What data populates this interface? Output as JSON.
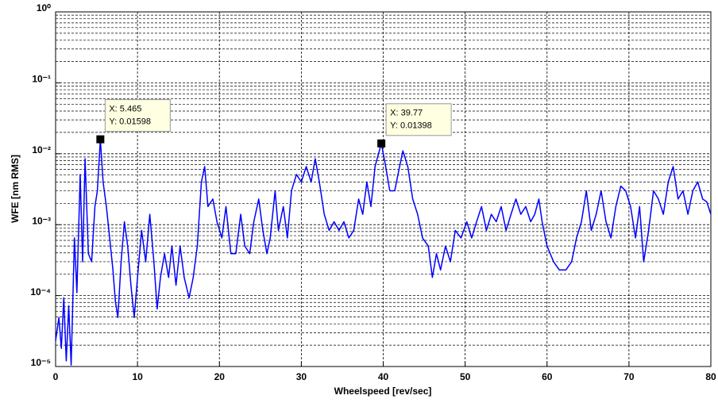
{
  "chart_data": {
    "type": "line",
    "yscale": "log",
    "grid": true,
    "xlabel": "Wheelspeed [rev/sec]",
    "ylabel": "WFE [nm RMS]",
    "xlim": [
      0,
      80
    ],
    "xticks": [
      0,
      10,
      20,
      30,
      40,
      50,
      60,
      70,
      80
    ],
    "ylim": [
      1e-05,
      1
    ],
    "yticks": [
      {
        "value": 1e-05,
        "label": "10⁻⁵"
      },
      {
        "value": 0.0001,
        "label": "10⁻⁴"
      },
      {
        "value": 0.001,
        "label": "10⁻³"
      },
      {
        "value": 0.01,
        "label": "10⁻²"
      },
      {
        "value": 0.1,
        "label": "10⁻¹"
      },
      {
        "value": 1,
        "label": "10⁰"
      }
    ],
    "x": [
      0,
      0.4,
      0.7,
      1.0,
      1.3,
      1.6,
      1.9,
      2.3,
      2.6,
      3.0,
      3.3,
      3.6,
      4.0,
      4.4,
      4.8,
      5.1,
      5.465,
      5.8,
      6.2,
      6.6,
      7.0,
      7.3,
      7.6,
      8.0,
      8.4,
      8.8,
      9.2,
      9.6,
      10.0,
      10.5,
      11.0,
      11.5,
      12.0,
      12.4,
      12.8,
      13.3,
      13.8,
      14.2,
      14.7,
      15.2,
      15.7,
      16.3,
      16.8,
      17.3,
      17.8,
      18.2,
      18.6,
      19.2,
      19.7,
      20.3,
      20.8,
      21.4,
      22.0,
      22.6,
      23.1,
      23.7,
      24.2,
      24.8,
      25.3,
      25.8,
      26.2,
      26.8,
      27.2,
      27.8,
      28.3,
      28.8,
      29.4,
      30.0,
      30.6,
      31.2,
      31.7,
      32.2,
      32.8,
      33.4,
      34.0,
      34.6,
      35.2,
      35.8,
      36.4,
      37.0,
      37.5,
      38.0,
      38.5,
      39.0,
      39.77,
      40.3,
      40.8,
      41.4,
      42.0,
      42.4,
      43.0,
      43.6,
      44.2,
      44.8,
      45.5,
      46.0,
      46.5,
      47.0,
      47.6,
      48.2,
      48.8,
      49.5,
      50.2,
      50.8,
      51.4,
      52.0,
      52.6,
      53.2,
      53.8,
      54.4,
      55.0,
      55.6,
      56.2,
      56.8,
      57.4,
      58.0,
      58.5,
      59.0,
      59.4,
      60.0,
      60.8,
      61.5,
      62.3,
      63.0,
      63.6,
      64.2,
      64.8,
      65.4,
      66.0,
      66.6,
      67.2,
      67.8,
      68.4,
      69.0,
      69.6,
      70.2,
      70.8,
      71.3,
      71.8,
      72.4,
      73.0,
      73.6,
      74.2,
      74.8,
      75.4,
      76.0,
      76.6,
      77.2,
      77.8,
      78.4,
      79.0,
      79.5,
      80.0
    ],
    "series": [
      {
        "color": "#0000ff",
        "values": [
          2.3e-05,
          4.9e-05,
          1.8e-05,
          9.3e-05,
          1.2e-05,
          7.2e-05,
          1.05e-05,
          0.00065,
          0.00011,
          0.0051,
          0.0003,
          0.0085,
          0.00039,
          0.0003,
          0.0018,
          0.003,
          0.01598,
          0.004,
          0.0018,
          0.00065,
          0.00023,
          8.3e-05,
          4.9e-05,
          0.0003,
          0.0011,
          0.0005,
          0.00014,
          4.9e-05,
          0.00018,
          0.00083,
          0.0003,
          0.0014,
          0.0003,
          6.5e-05,
          0.00018,
          0.00039,
          0.00018,
          0.0005,
          0.00014,
          0.0005,
          0.00018,
          9.3e-05,
          0.00018,
          0.0005,
          0.004,
          0.0066,
          0.0018,
          0.0023,
          0.0011,
          0.00065,
          0.0018,
          0.00039,
          0.00039,
          0.0014,
          0.0005,
          0.00039,
          0.0011,
          0.0023,
          0.00083,
          0.00039,
          0.00065,
          0.003,
          0.00083,
          0.0018,
          0.00065,
          0.003,
          0.0051,
          0.004,
          0.0066,
          0.004,
          0.0085,
          0.004,
          0.0014,
          0.00083,
          0.0011,
          0.00083,
          0.0011,
          0.00065,
          0.00083,
          0.0023,
          0.0014,
          0.004,
          0.0018,
          0.0066,
          0.01398,
          0.0066,
          0.003,
          0.003,
          0.0066,
          0.011,
          0.0066,
          0.0023,
          0.0014,
          0.00065,
          0.0005,
          0.00018,
          0.00039,
          0.00023,
          0.0005,
          0.0003,
          0.00083,
          0.00065,
          0.0011,
          0.00065,
          0.0011,
          0.0018,
          0.00083,
          0.0014,
          0.0011,
          0.0018,
          0.00083,
          0.0014,
          0.0023,
          0.0014,
          0.0018,
          0.0011,
          0.0014,
          0.0023,
          0.0011,
          0.0005,
          0.0003,
          0.00023,
          0.00023,
          0.0003,
          0.00065,
          0.0011,
          0.003,
          0.00083,
          0.0014,
          0.003,
          0.0011,
          0.00065,
          0.0018,
          0.0035,
          0.003,
          0.0018,
          0.00065,
          0.0018,
          0.0003,
          0.00083,
          0.003,
          0.0023,
          0.0014,
          0.004,
          0.0066,
          0.0023,
          0.003,
          0.0014,
          0.003,
          0.004,
          0.0023,
          0.0021,
          0.0014
        ]
      }
    ],
    "datatips": [
      {
        "x": 5.465,
        "y": 0.01598,
        "lines": [
          "X: 5.465",
          "Y: 0.01598"
        ]
      },
      {
        "x": 39.77,
        "y": 0.01398,
        "lines": [
          "X: 39.77",
          "Y: 0.01398"
        ]
      }
    ]
  }
}
